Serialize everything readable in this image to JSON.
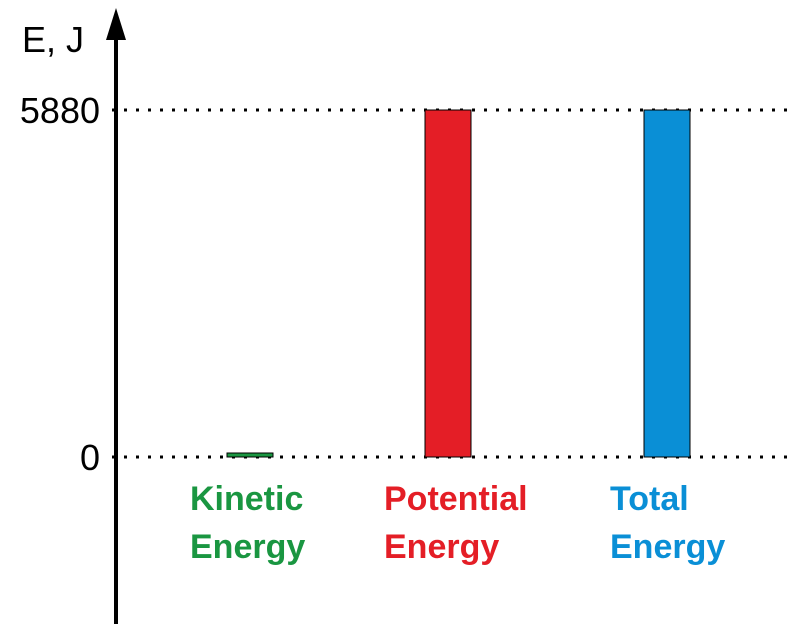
{
  "chart_data": {
    "type": "bar",
    "ylabel": "E, J",
    "ylim": [
      0,
      5880
    ],
    "yticks": [
      "0",
      "5880"
    ],
    "grid": "dotted reference lines at tick values",
    "categories": [
      {
        "line1": "Kinetic",
        "line2": "Energy",
        "value": 0,
        "color": "#1a9641"
      },
      {
        "line1": "Potential",
        "line2": "Energy",
        "value": 5880,
        "color": "#e41e26"
      },
      {
        "line1": "Total",
        "line2": "Energy",
        "value": 5880,
        "color": "#0a8fd6"
      }
    ]
  }
}
